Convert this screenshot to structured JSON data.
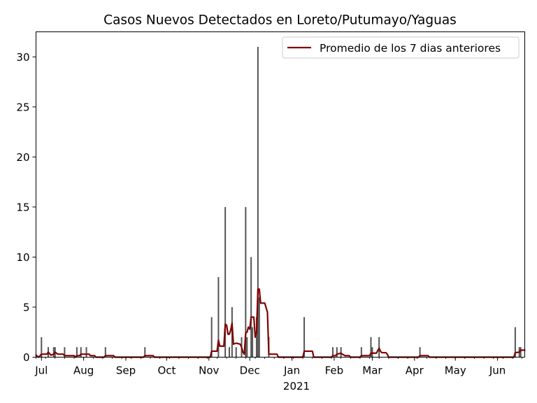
{
  "chart_data": {
    "type": "bar+line",
    "title": "Casos Nuevos Detectados en Loreto/Putumayo/Yaguas",
    "xlabel": "",
    "ylabel": "",
    "x_start": "2020-06-27",
    "x_end": "2021-06-21",
    "ylim": [
      0,
      32.5
    ],
    "yticks": [
      0,
      5,
      10,
      15,
      20,
      25,
      30
    ],
    "xticks": [
      {
        "date": "2020-07-01",
        "label": "Jul"
      },
      {
        "date": "2020-08-01",
        "label": "Aug"
      },
      {
        "date": "2020-09-01",
        "label": "Sep"
      },
      {
        "date": "2020-10-01",
        "label": "Oct"
      },
      {
        "date": "2020-11-01",
        "label": "Nov"
      },
      {
        "date": "2020-12-01",
        "label": "Dec"
      },
      {
        "date": "2021-01-01",
        "label": "Jan"
      },
      {
        "date": "2021-02-01",
        "label": "Feb"
      },
      {
        "date": "2021-03-01",
        "label": "Mar"
      },
      {
        "date": "2021-04-01",
        "label": "Apr"
      },
      {
        "date": "2021-05-01",
        "label": "May"
      },
      {
        "date": "2021-06-01",
        "label": "Jun"
      }
    ],
    "year_label": "2021",
    "grid": false,
    "legend": {
      "position": "top-right",
      "entries": [
        "Promedio de los 7 dias anteriores"
      ]
    },
    "bar_color": "#555555",
    "line_color": "#800000",
    "bars": [
      {
        "date": "2020-07-01",
        "value": 2
      },
      {
        "date": "2020-07-06",
        "value": 1
      },
      {
        "date": "2020-07-10",
        "value": 1
      },
      {
        "date": "2020-07-11",
        "value": 1
      },
      {
        "date": "2020-07-18",
        "value": 1
      },
      {
        "date": "2020-07-27",
        "value": 1
      },
      {
        "date": "2020-07-30",
        "value": 1
      },
      {
        "date": "2020-08-03",
        "value": 1
      },
      {
        "date": "2020-08-17",
        "value": 1
      },
      {
        "date": "2020-09-15",
        "value": 1
      },
      {
        "date": "2020-11-03",
        "value": 4
      },
      {
        "date": "2020-11-08",
        "value": 8
      },
      {
        "date": "2020-11-13",
        "value": 15
      },
      {
        "date": "2020-11-16",
        "value": 1
      },
      {
        "date": "2020-11-18",
        "value": 5
      },
      {
        "date": "2020-11-21",
        "value": 1
      },
      {
        "date": "2020-11-25",
        "value": 2
      },
      {
        "date": "2020-11-28",
        "value": 15
      },
      {
        "date": "2020-11-29",
        "value": 2
      },
      {
        "date": "2020-12-02",
        "value": 10
      },
      {
        "date": "2020-12-03",
        "value": 3
      },
      {
        "date": "2020-12-06",
        "value": 4
      },
      {
        "date": "2020-12-07",
        "value": 31
      },
      {
        "date": "2020-12-08",
        "value": 6
      },
      {
        "date": "2020-12-15",
        "value": 2
      },
      {
        "date": "2021-01-10",
        "value": 4
      },
      {
        "date": "2021-01-31",
        "value": 1
      },
      {
        "date": "2021-02-03",
        "value": 1
      },
      {
        "date": "2021-02-06",
        "value": 1
      },
      {
        "date": "2021-02-21",
        "value": 1
      },
      {
        "date": "2021-02-28",
        "value": 2
      },
      {
        "date": "2021-03-01",
        "value": 1
      },
      {
        "date": "2021-03-06",
        "value": 2
      },
      {
        "date": "2021-04-05",
        "value": 1
      },
      {
        "date": "2021-06-14",
        "value": 3
      },
      {
        "date": "2021-06-17",
        "value": 1
      },
      {
        "date": "2021-06-18",
        "value": 1
      }
    ],
    "series": [
      {
        "name": "Promedio de los 7 dias anteriores",
        "points": [
          [
            "2020-06-27",
            0.2
          ],
          [
            "2020-06-29",
            0.0
          ],
          [
            "2020-07-01",
            0.3
          ],
          [
            "2020-07-05",
            0.3
          ],
          [
            "2020-07-06",
            0.5
          ],
          [
            "2020-07-08",
            0.2
          ],
          [
            "2020-07-10",
            0.3
          ],
          [
            "2020-07-11",
            0.5
          ],
          [
            "2020-07-13",
            0.3
          ],
          [
            "2020-07-17",
            0.3
          ],
          [
            "2020-07-18",
            0.15
          ],
          [
            "2020-07-25",
            0.15
          ],
          [
            "2020-07-26",
            0.0
          ],
          [
            "2020-07-27",
            0.15
          ],
          [
            "2020-07-29",
            0.15
          ],
          [
            "2020-07-30",
            0.3
          ],
          [
            "2020-08-05",
            0.3
          ],
          [
            "2020-08-06",
            0.15
          ],
          [
            "2020-08-09",
            0.15
          ],
          [
            "2020-08-10",
            0.0
          ],
          [
            "2020-08-16",
            0.0
          ],
          [
            "2020-08-17",
            0.15
          ],
          [
            "2020-08-23",
            0.15
          ],
          [
            "2020-08-24",
            0.0
          ],
          [
            "2020-09-14",
            0.0
          ],
          [
            "2020-09-15",
            0.15
          ],
          [
            "2020-09-21",
            0.15
          ],
          [
            "2020-09-22",
            0.0
          ],
          [
            "2020-11-02",
            0.0
          ],
          [
            "2020-11-03",
            0.6
          ],
          [
            "2020-11-07",
            0.6
          ],
          [
            "2020-11-08",
            1.7
          ],
          [
            "2020-11-09",
            1.1
          ],
          [
            "2020-11-12",
            1.1
          ],
          [
            "2020-11-13",
            3.3
          ],
          [
            "2020-11-14",
            3.2
          ],
          [
            "2020-11-15",
            2.3
          ],
          [
            "2020-11-16",
            2.3
          ],
          [
            "2020-11-17",
            2.7
          ],
          [
            "2020-11-18",
            3.4
          ],
          [
            "2020-11-19",
            1.3
          ],
          [
            "2020-11-21",
            1.4
          ],
          [
            "2020-11-24",
            1.3
          ],
          [
            "2020-11-25",
            1.0
          ],
          [
            "2020-11-26",
            0.5
          ],
          [
            "2020-11-27",
            0.3
          ],
          [
            "2020-11-28",
            2.4
          ],
          [
            "2020-11-29",
            2.5
          ],
          [
            "2020-11-30",
            3.0
          ],
          [
            "2020-12-01",
            2.8
          ],
          [
            "2020-12-02",
            4.0
          ],
          [
            "2020-12-04",
            4.0
          ],
          [
            "2020-12-05",
            2.0
          ],
          [
            "2020-12-06",
            2.5
          ],
          [
            "2020-12-07",
            6.8
          ],
          [
            "2020-12-08",
            6.8
          ],
          [
            "2020-12-09",
            5.4
          ],
          [
            "2020-12-12",
            5.4
          ],
          [
            "2020-12-14",
            4.5
          ],
          [
            "2020-12-15",
            0.3
          ],
          [
            "2020-12-21",
            0.3
          ],
          [
            "2020-12-22",
            0.0
          ],
          [
            "2021-01-09",
            0.0
          ],
          [
            "2021-01-10",
            0.6
          ],
          [
            "2021-01-16",
            0.6
          ],
          [
            "2021-01-17",
            0.0
          ],
          [
            "2021-01-30",
            0.0
          ],
          [
            "2021-01-31",
            0.15
          ],
          [
            "2021-02-02",
            0.15
          ],
          [
            "2021-02-03",
            0.3
          ],
          [
            "2021-02-06",
            0.4
          ],
          [
            "2021-02-07",
            0.3
          ],
          [
            "2021-02-09",
            0.15
          ],
          [
            "2021-02-12",
            0.15
          ],
          [
            "2021-02-13",
            0.0
          ],
          [
            "2021-02-20",
            0.0
          ],
          [
            "2021-02-21",
            0.15
          ],
          [
            "2021-02-27",
            0.15
          ],
          [
            "2021-02-28",
            0.4
          ],
          [
            "2021-03-01",
            0.4
          ],
          [
            "2021-03-04",
            0.4
          ],
          [
            "2021-03-06",
            0.9
          ],
          [
            "2021-03-07",
            0.6
          ],
          [
            "2021-03-08",
            0.45
          ],
          [
            "2021-03-11",
            0.45
          ],
          [
            "2021-03-12",
            0.3
          ],
          [
            "2021-03-13",
            0.0
          ],
          [
            "2021-04-04",
            0.0
          ],
          [
            "2021-04-05",
            0.15
          ],
          [
            "2021-04-11",
            0.15
          ],
          [
            "2021-04-12",
            0.0
          ],
          [
            "2021-06-13",
            0.0
          ],
          [
            "2021-06-14",
            0.45
          ],
          [
            "2021-06-17",
            0.5
          ],
          [
            "2021-06-18",
            0.7
          ],
          [
            "2021-06-21",
            0.7
          ]
        ]
      }
    ]
  }
}
